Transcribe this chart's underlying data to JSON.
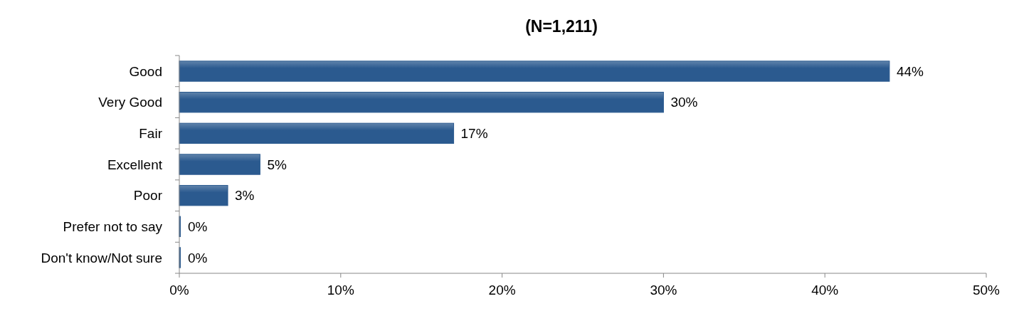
{
  "chart_data": {
    "type": "bar",
    "orientation": "horizontal",
    "title": "(N=1,211)",
    "categories": [
      "Good",
      "Very Good",
      "Fair",
      "Excellent",
      "Poor",
      "Prefer not to say",
      "Don't know/Not sure"
    ],
    "values": [
      44,
      30,
      17,
      5,
      3,
      0,
      0
    ],
    "value_labels": [
      "44%",
      "30%",
      "17%",
      "5%",
      "3%",
      "0%",
      "0%"
    ],
    "color": "#2b5a8f",
    "xlim": [
      0,
      50
    ],
    "xticks": [
      {
        "value": 0,
        "label": "0%"
      },
      {
        "value": 10,
        "label": "10%"
      },
      {
        "value": 20,
        "label": "20%"
      },
      {
        "value": 30,
        "label": "30%"
      },
      {
        "value": 40,
        "label": "40%"
      },
      {
        "value": 50,
        "label": "50%"
      }
    ],
    "grid": false
  }
}
